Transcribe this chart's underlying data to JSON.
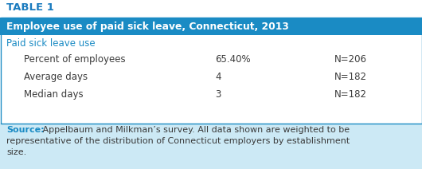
{
  "table_label": "TABLE 1",
  "header_text": "Employee use of paid sick leave, Connecticut, 2013",
  "subheader_text": "Paid sick leave use",
  "rows": [
    {
      "label": "Percent of employees",
      "value": "65.40%",
      "n": "N=206"
    },
    {
      "label": "Average days",
      "value": "4",
      "n": "N=182"
    },
    {
      "label": "Median days",
      "value": "3",
      "n": "N=182"
    }
  ],
  "source_label": "Source:",
  "source_line1": " Appelbaum and Milkman’s survey. All data shown are weighted to be",
  "source_line2": "representative of the distribution of Connecticut employers by establishment",
  "source_line3": "size.",
  "colors": {
    "table_label_text": "#1a7bbf",
    "header_bg": "#1a8bc4",
    "header_text": "#ffffff",
    "subheader_text": "#1a8bc4",
    "row_text": "#3a3a3a",
    "source_bg": "#cce9f5",
    "source_label_color": "#1a8bc4",
    "source_text_color": "#3a3a3a",
    "outer_border": "#1a8bc4",
    "table_bg": "#ffffff"
  },
  "figsize": [
    5.3,
    2.12
  ],
  "dpi": 100
}
